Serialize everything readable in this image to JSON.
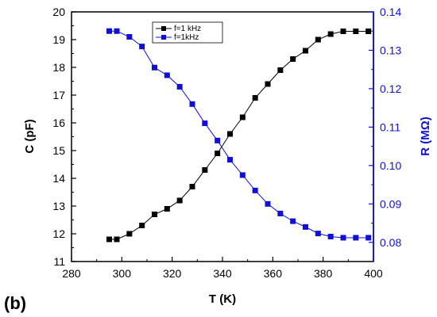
{
  "panel_label": "(b)",
  "colors": {
    "left_axis": "#000000",
    "right_axis": "#1010d0",
    "series_c": "#000000",
    "series_r": "#1010d0"
  },
  "chart_data": {
    "type": "line",
    "xlabel": "T (K)",
    "ylabel_left": "C (pF)",
    "ylabel_right": "R (MΩ)",
    "xlim": [
      280,
      400
    ],
    "ylim_left": [
      11,
      20
    ],
    "ylim_right": [
      0.075,
      0.14
    ],
    "x_ticks": [
      "280",
      "300",
      "320",
      "340",
      "360",
      "380",
      "400"
    ],
    "y_left_ticks": [
      "11",
      "12",
      "13",
      "14",
      "15",
      "16",
      "17",
      "18",
      "19",
      "20"
    ],
    "y_right_ticks": [
      "0.08",
      "0.09",
      "0.10",
      "0.11",
      "0.12",
      "0.13",
      "0.14"
    ],
    "legend_position": "top-left",
    "series": [
      {
        "name": "f=1 kHz",
        "axis": "left",
        "marker": "square",
        "color": "#000000",
        "x": [
          295,
          298,
          303,
          308,
          313,
          318,
          323,
          328,
          333,
          338,
          343,
          348,
          353,
          358,
          363,
          368,
          373,
          378,
          383,
          388,
          393,
          398
        ],
        "y": [
          11.8,
          11.8,
          12.0,
          12.3,
          12.7,
          12.9,
          13.2,
          13.7,
          14.3,
          14.9,
          15.6,
          16.2,
          16.9,
          17.4,
          17.9,
          18.3,
          18.6,
          19.0,
          19.2,
          19.3,
          19.3,
          19.3
        ]
      },
      {
        "name": "f=1kHz",
        "axis": "right",
        "marker": "square",
        "color": "#1010d0",
        "x": [
          295,
          298,
          303,
          308,
          313,
          318,
          323,
          328,
          333,
          338,
          343,
          348,
          353,
          358,
          363,
          368,
          373,
          378,
          383,
          388,
          393,
          398
        ],
        "y": [
          0.135,
          0.135,
          0.1335,
          0.131,
          0.1255,
          0.1235,
          0.1205,
          0.116,
          0.111,
          0.1065,
          0.1015,
          0.0975,
          0.0935,
          0.09,
          0.0875,
          0.0855,
          0.084,
          0.0823,
          0.0815,
          0.0812,
          0.0812,
          0.0812
        ]
      }
    ]
  }
}
